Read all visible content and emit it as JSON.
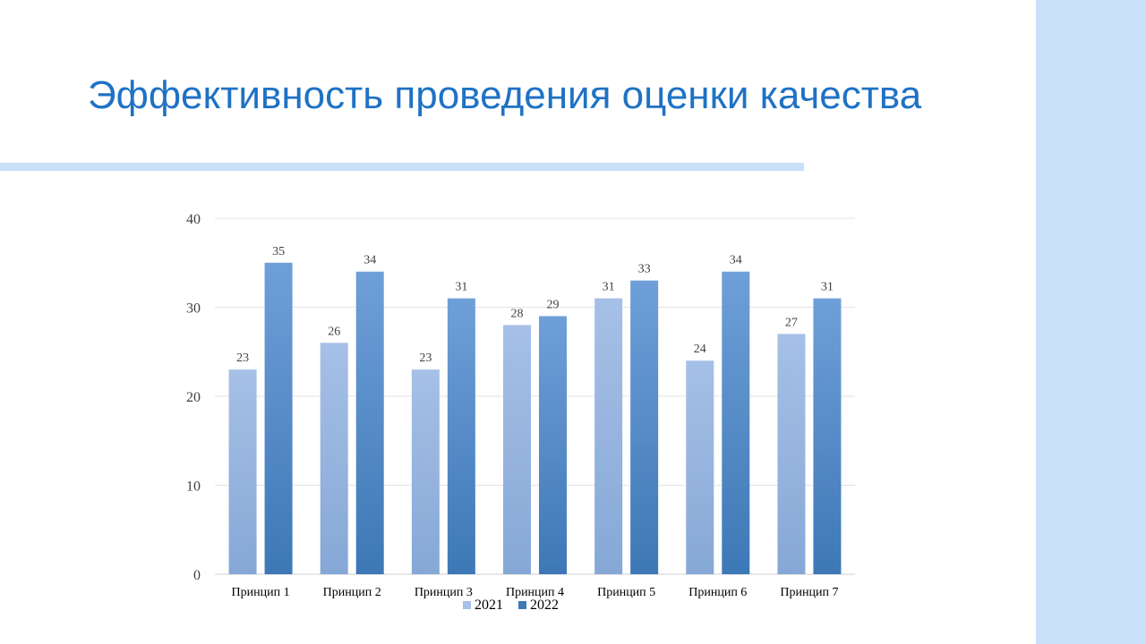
{
  "title": "Эффективность проведения оценки качества",
  "colors": {
    "title": "#1f72c4",
    "band": "#c8e0f8",
    "series_2021_top": "#a6c0e6",
    "series_2021_bottom": "#86a8d6",
    "series_2022_top": "#6f9fd8",
    "series_2022_bottom": "#3d78b6",
    "grid": "#e3e3e3",
    "text": "#404040"
  },
  "chart_data": {
    "type": "bar",
    "categories": [
      "Принцип 1",
      "Принцип 2",
      "Принцип 3",
      "Принцип 4",
      "Принцип 5",
      "Принцип 6",
      "Принцип 7"
    ],
    "series": [
      {
        "name": "2021",
        "values": [
          23,
          26,
          23,
          28,
          31,
          24,
          27
        ]
      },
      {
        "name": "2022",
        "values": [
          35,
          34,
          31,
          29,
          33,
          34,
          31
        ]
      }
    ],
    "ylim": [
      0,
      40
    ],
    "yticks": [
      0,
      10,
      20,
      30,
      40
    ],
    "grid": true,
    "data_labels": true,
    "legend": "bottom",
    "title": "",
    "xlabel": "",
    "ylabel": ""
  }
}
